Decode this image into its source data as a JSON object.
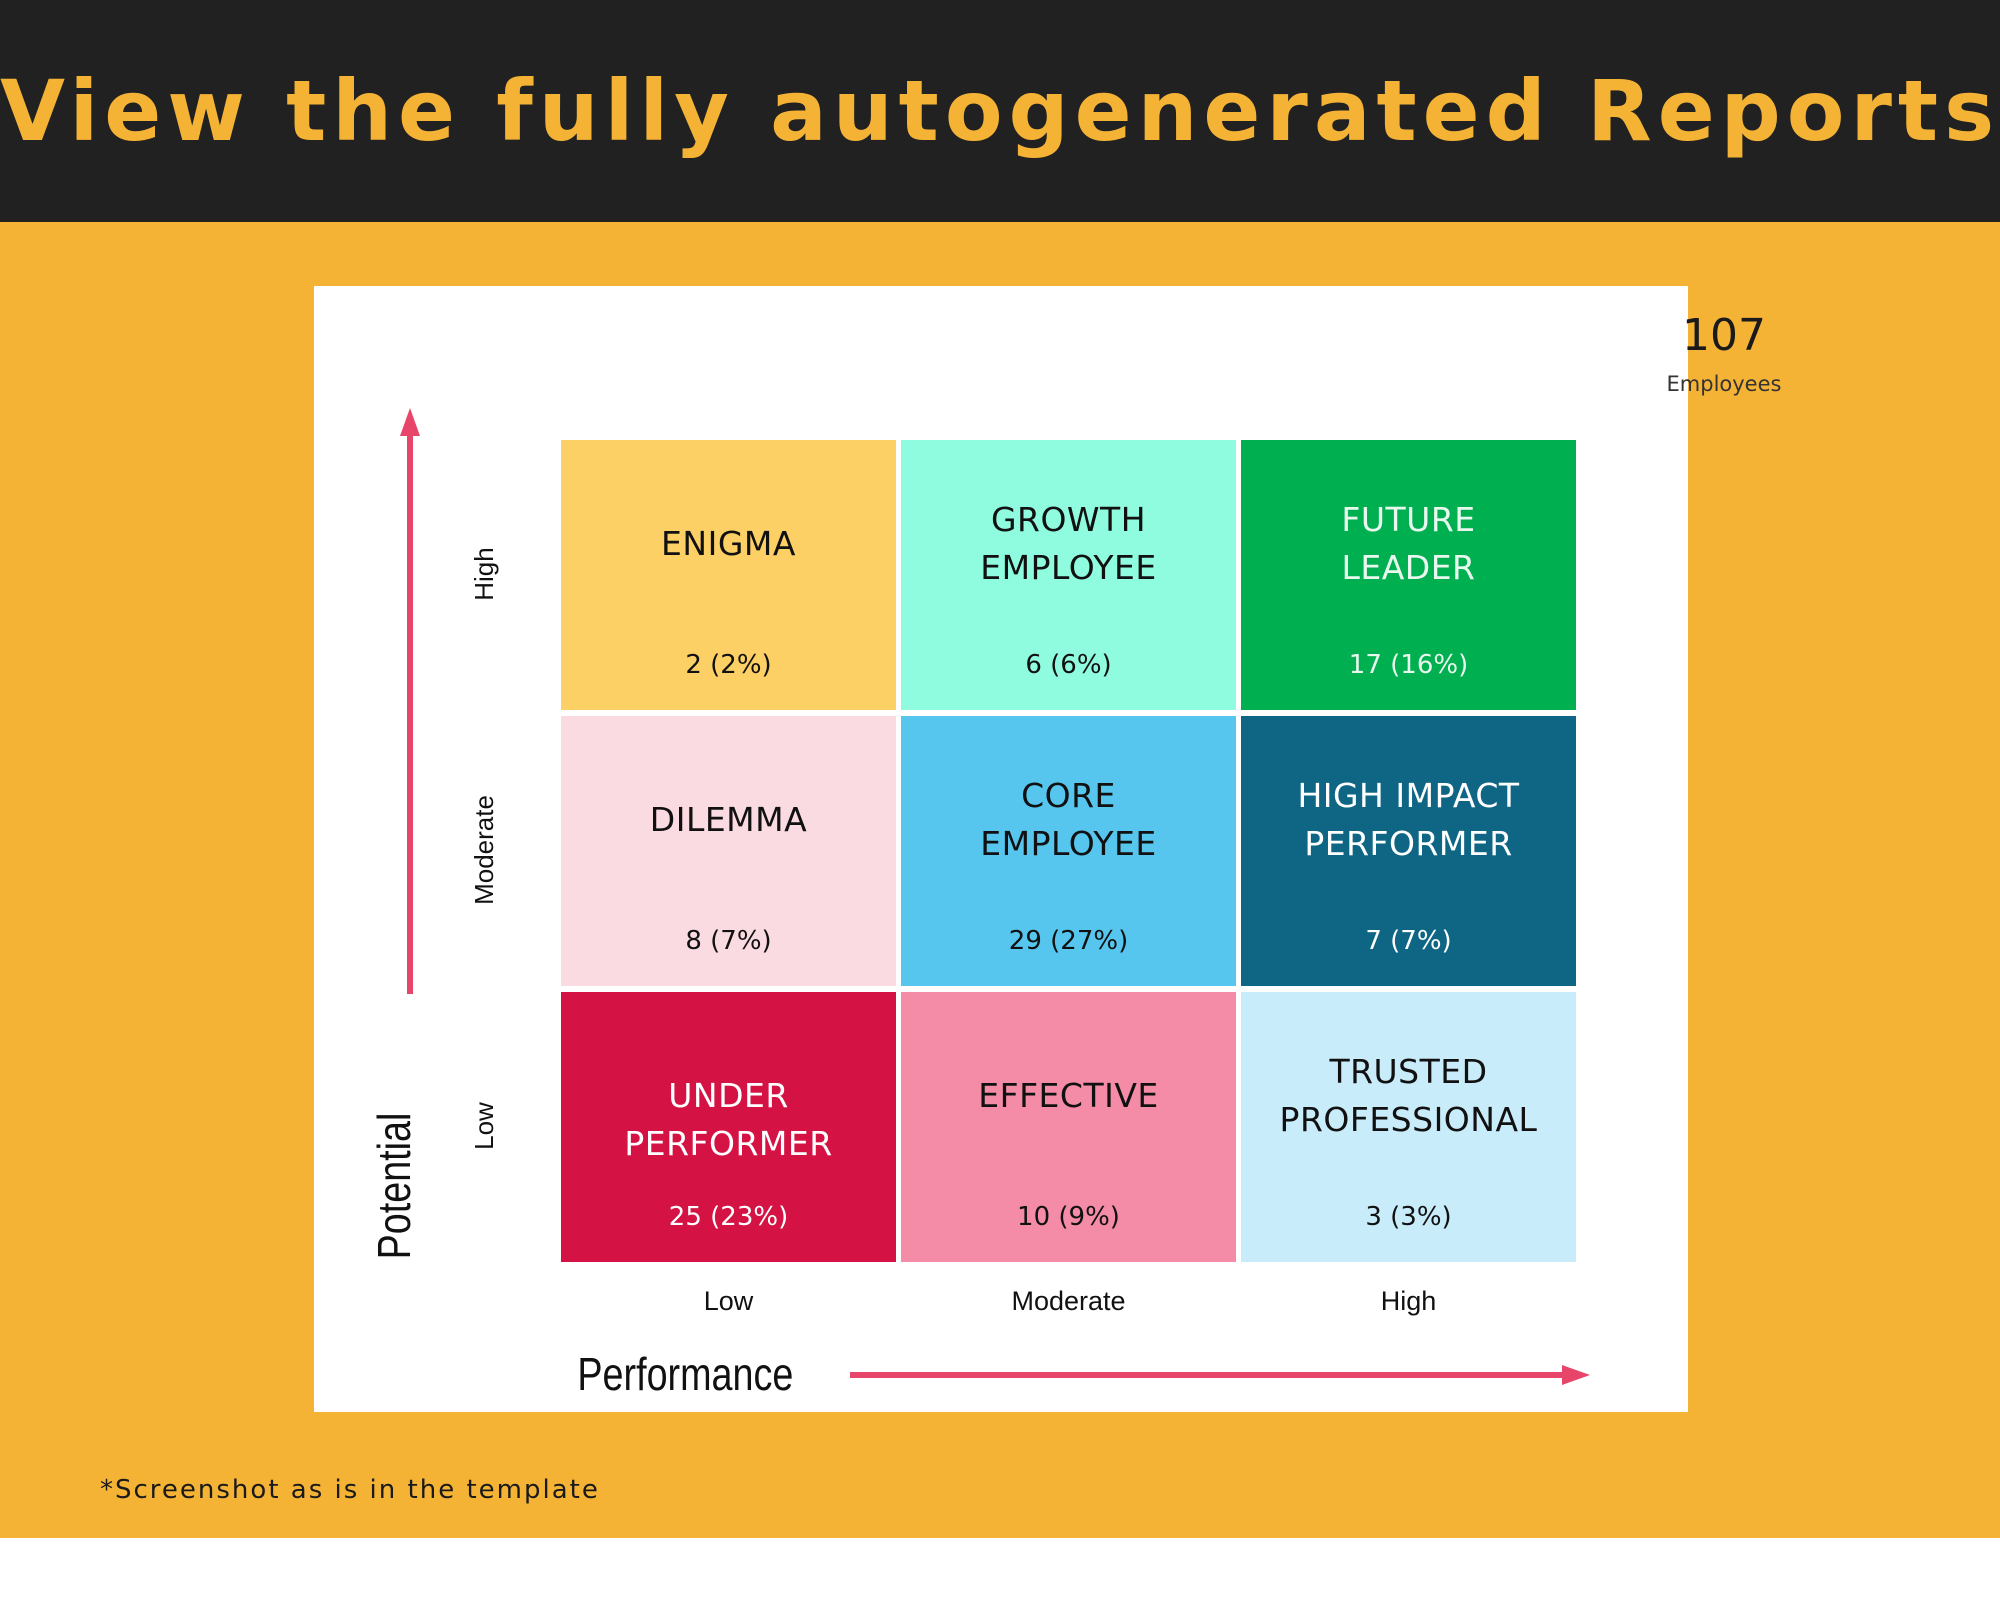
{
  "header": {
    "title": "View the fully autogenerated Reports"
  },
  "summary": {
    "total": "107",
    "label": "Employees"
  },
  "axes": {
    "y_title": "Potential",
    "x_title": "Performance",
    "y_levels": [
      "High",
      "Moderate",
      "Low"
    ],
    "x_levels": [
      "Low",
      "Moderate",
      "High"
    ]
  },
  "colors": {
    "header_bg": "#212121",
    "accent": "#f5b335",
    "arrow": "#e8456a"
  },
  "grid": [
    {
      "name": "ENIGMA",
      "count": "2 (2%)",
      "bg": "#fdd066",
      "fg": "#111111",
      "potential": "High",
      "performance": "Low"
    },
    {
      "name": "GROWTH\nEMPLOYEE",
      "count": "6 (6%)",
      "bg": "#8ffce0",
      "fg": "#111111",
      "potential": "High",
      "performance": "Moderate"
    },
    {
      "name": "FUTURE\nLEADER",
      "count": "17 (16%)",
      "bg": "#00b050",
      "fg": "#e8f8ee",
      "potential": "High",
      "performance": "High"
    },
    {
      "name": "DILEMMA",
      "count": "8 (7%)",
      "bg": "#fadbe2",
      "fg": "#111111",
      "potential": "Moderate",
      "performance": "Low"
    },
    {
      "name": "CORE\nEMPLOYEE",
      "count": "29 (27%)",
      "bg": "#56c6ee",
      "fg": "#111111",
      "potential": "Moderate",
      "performance": "Moderate"
    },
    {
      "name": "HIGH IMPACT\nPERFORMER",
      "count": "7 (7%)",
      "bg": "#0f6684",
      "fg": "#ffffff",
      "potential": "Moderate",
      "performance": "High"
    },
    {
      "name": "UNDER PERFORMER",
      "count": "25 (23%)",
      "bg": "#d41243",
      "fg": "#ffffff",
      "potential": "Low",
      "performance": "Low"
    },
    {
      "name": "EFFECTIVE",
      "count": "10 (9%)",
      "bg": "#f48ca8",
      "fg": "#111111",
      "potential": "Low",
      "performance": "Moderate"
    },
    {
      "name": "TRUSTED\nPROFESSIONAL",
      "count": "3 (3%)",
      "bg": "#c8ecf9",
      "fg": "#111111",
      "potential": "Low",
      "performance": "High"
    }
  ],
  "footnote": "*Screenshot as is in the template"
}
